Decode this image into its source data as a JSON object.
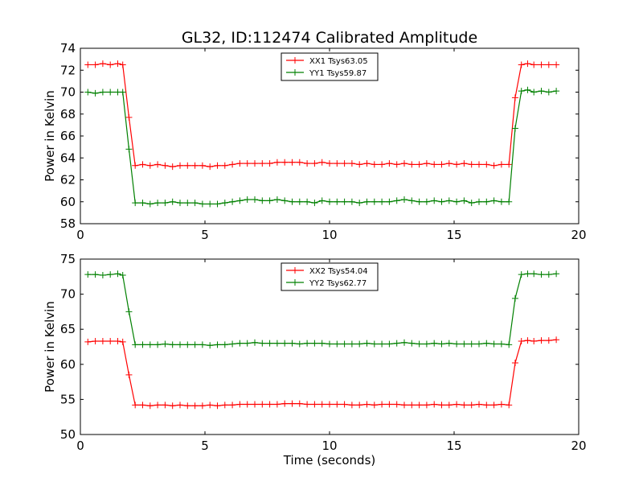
{
  "title": "GL32, ID:112474 Calibrated Amplitude",
  "colors": {
    "red": "#ff0000",
    "green": "#008000"
  },
  "chart_data": [
    {
      "type": "line",
      "title": "GL32, ID:112474 Calibrated Amplitude",
      "xlabel": "",
      "ylabel": "Power in Kelvin",
      "xlim": [
        0,
        20
      ],
      "ylim": [
        58,
        74
      ],
      "xticks": [
        0,
        5,
        10,
        15,
        20
      ],
      "yticks": [
        58,
        60,
        62,
        64,
        66,
        68,
        70,
        72,
        74
      ],
      "grid": false,
      "legend_position": "top-center",
      "x": [
        0.3,
        0.6,
        0.9,
        1.2,
        1.5,
        1.7,
        1.95,
        2.2,
        2.5,
        2.8,
        3.1,
        3.4,
        3.7,
        4.0,
        4.3,
        4.6,
        4.9,
        5.2,
        5.5,
        5.8,
        6.1,
        6.4,
        6.7,
        7.0,
        7.3,
        7.6,
        7.9,
        8.2,
        8.5,
        8.8,
        9.1,
        9.4,
        9.7,
        10.0,
        10.3,
        10.6,
        10.9,
        11.2,
        11.5,
        11.8,
        12.1,
        12.4,
        12.7,
        13.0,
        13.3,
        13.6,
        13.9,
        14.2,
        14.5,
        14.8,
        15.1,
        15.4,
        15.7,
        16.0,
        16.3,
        16.6,
        16.9,
        17.2,
        17.45,
        17.7,
        17.95,
        18.2,
        18.5,
        18.8,
        19.1
      ],
      "series": [
        {
          "name": "XX1 Tsys63.05",
          "color": "#ff0000",
          "values": [
            72.5,
            72.5,
            72.6,
            72.5,
            72.6,
            72.5,
            67.7,
            63.3,
            63.4,
            63.3,
            63.4,
            63.3,
            63.2,
            63.3,
            63.3,
            63.3,
            63.3,
            63.2,
            63.3,
            63.3,
            63.4,
            63.5,
            63.5,
            63.5,
            63.5,
            63.5,
            63.6,
            63.6,
            63.6,
            63.6,
            63.5,
            63.5,
            63.6,
            63.5,
            63.5,
            63.5,
            63.5,
            63.4,
            63.5,
            63.4,
            63.4,
            63.5,
            63.4,
            63.5,
            63.4,
            63.4,
            63.5,
            63.4,
            63.4,
            63.5,
            63.4,
            63.5,
            63.4,
            63.4,
            63.4,
            63.3,
            63.4,
            63.4,
            69.5,
            72.5,
            72.6,
            72.5,
            72.5,
            72.5,
            72.5
          ]
        },
        {
          "name": "YY1 Tsys59.87",
          "color": "#008000",
          "values": [
            70.0,
            69.9,
            70.0,
            70.0,
            70.0,
            70.0,
            64.8,
            59.9,
            59.9,
            59.8,
            59.9,
            59.9,
            60.0,
            59.9,
            59.9,
            59.9,
            59.8,
            59.8,
            59.8,
            59.9,
            60.0,
            60.1,
            60.2,
            60.2,
            60.1,
            60.1,
            60.2,
            60.1,
            60.0,
            60.0,
            60.0,
            59.9,
            60.1,
            60.0,
            60.0,
            60.0,
            60.0,
            59.9,
            60.0,
            60.0,
            60.0,
            60.0,
            60.1,
            60.2,
            60.1,
            60.0,
            60.0,
            60.1,
            60.0,
            60.1,
            60.0,
            60.1,
            59.9,
            60.0,
            60.0,
            60.1,
            60.0,
            60.0,
            66.7,
            70.1,
            70.2,
            70.0,
            70.1,
            70.0,
            70.1
          ]
        }
      ]
    },
    {
      "type": "line",
      "title": "",
      "xlabel": "Time (seconds)",
      "ylabel": "Power in Kelvin",
      "xlim": [
        0,
        20
      ],
      "ylim": [
        50,
        75
      ],
      "xticks": [
        0,
        5,
        10,
        15,
        20
      ],
      "yticks": [
        50,
        55,
        60,
        65,
        70,
        75
      ],
      "grid": false,
      "legend_position": "top-center",
      "x": [
        0.3,
        0.6,
        0.9,
        1.2,
        1.5,
        1.7,
        1.95,
        2.2,
        2.5,
        2.8,
        3.1,
        3.4,
        3.7,
        4.0,
        4.3,
        4.6,
        4.9,
        5.2,
        5.5,
        5.8,
        6.1,
        6.4,
        6.7,
        7.0,
        7.3,
        7.6,
        7.9,
        8.2,
        8.5,
        8.8,
        9.1,
        9.4,
        9.7,
        10.0,
        10.3,
        10.6,
        10.9,
        11.2,
        11.5,
        11.8,
        12.1,
        12.4,
        12.7,
        13.0,
        13.3,
        13.6,
        13.9,
        14.2,
        14.5,
        14.8,
        15.1,
        15.4,
        15.7,
        16.0,
        16.3,
        16.6,
        16.9,
        17.2,
        17.45,
        17.7,
        17.95,
        18.2,
        18.5,
        18.8,
        19.1
      ],
      "series": [
        {
          "name": "XX2 Tsys54.04",
          "color": "#ff0000",
          "values": [
            63.2,
            63.3,
            63.3,
            63.3,
            63.3,
            63.2,
            58.5,
            54.2,
            54.2,
            54.1,
            54.2,
            54.2,
            54.1,
            54.2,
            54.1,
            54.1,
            54.1,
            54.2,
            54.1,
            54.2,
            54.2,
            54.3,
            54.3,
            54.3,
            54.3,
            54.3,
            54.3,
            54.4,
            54.4,
            54.4,
            54.3,
            54.3,
            54.3,
            54.3,
            54.3,
            54.3,
            54.2,
            54.2,
            54.3,
            54.2,
            54.3,
            54.3,
            54.3,
            54.2,
            54.2,
            54.2,
            54.2,
            54.3,
            54.2,
            54.2,
            54.3,
            54.2,
            54.2,
            54.3,
            54.2,
            54.2,
            54.3,
            54.2,
            60.2,
            63.3,
            63.4,
            63.3,
            63.4,
            63.4,
            63.5
          ]
        },
        {
          "name": "YY2 Tsys62.77",
          "color": "#008000",
          "values": [
            72.8,
            72.8,
            72.7,
            72.8,
            72.9,
            72.7,
            67.5,
            62.8,
            62.8,
            62.8,
            62.8,
            62.9,
            62.8,
            62.8,
            62.8,
            62.8,
            62.8,
            62.7,
            62.8,
            62.8,
            62.9,
            63.0,
            63.0,
            63.1,
            63.0,
            63.0,
            63.0,
            63.0,
            63.0,
            62.9,
            63.0,
            63.0,
            63.0,
            62.9,
            62.9,
            62.9,
            62.9,
            62.9,
            63.0,
            62.9,
            62.9,
            62.9,
            63.0,
            63.1,
            63.0,
            62.9,
            62.9,
            63.0,
            62.9,
            63.0,
            62.9,
            62.9,
            62.9,
            62.9,
            63.0,
            62.9,
            62.9,
            62.8,
            69.4,
            72.8,
            72.9,
            72.9,
            72.8,
            72.8,
            72.9
          ]
        }
      ]
    }
  ]
}
